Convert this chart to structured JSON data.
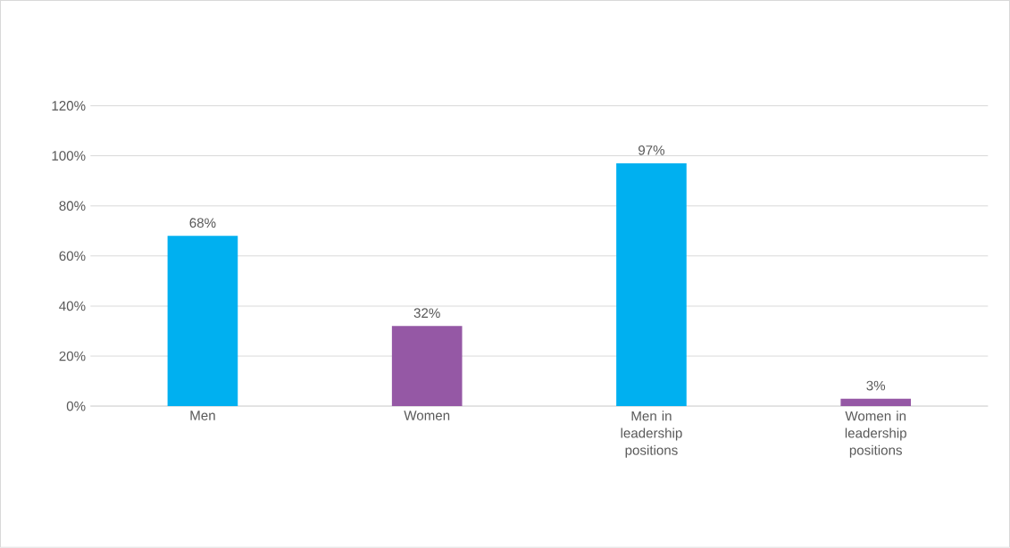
{
  "chart_data": {
    "type": "bar",
    "categories": [
      "Men",
      "Women",
      "Men in leadership positions",
      "Women in leadership positions"
    ],
    "values": [
      68,
      32,
      97,
      3
    ],
    "colors": [
      "#00b0f0",
      "#9558a5",
      "#00b0f0",
      "#9558a5"
    ],
    "value_labels": [
      "68%",
      "32%",
      "97%",
      "3%"
    ],
    "ylim": [
      0,
      120
    ],
    "yticks": [
      {
        "value": 0,
        "label": "0%"
      },
      {
        "value": 20,
        "label": "20%"
      },
      {
        "value": 40,
        "label": "40%"
      },
      {
        "value": 60,
        "label": "60%"
      },
      {
        "value": 80,
        "label": "80%"
      },
      {
        "value": 100,
        "label": "100%"
      },
      {
        "value": 120,
        "label": "120%"
      }
    ],
    "grid": "y"
  }
}
